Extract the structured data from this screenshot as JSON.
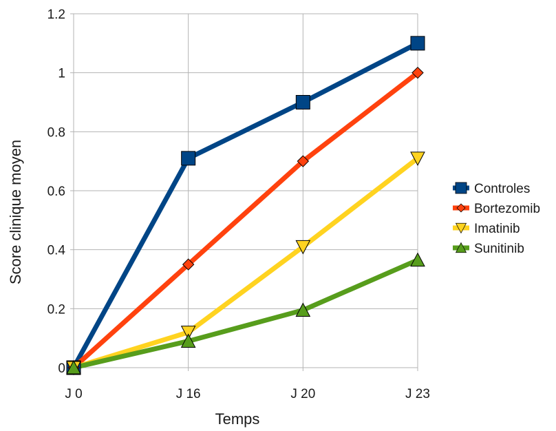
{
  "chart_data": {
    "type": "line",
    "title": "",
    "xlabel": "Temps",
    "ylabel": "Score clinique moyen",
    "categories": [
      "J 0",
      "J 16",
      "J 20",
      "J 23"
    ],
    "ylim": [
      0,
      1.2
    ],
    "yticks": [
      0,
      0.2,
      0.4,
      0.6,
      0.8,
      1,
      1.2
    ],
    "ytick_labels": [
      "0",
      "0.2",
      "0.4",
      "0.6",
      "0.8",
      "1",
      "1.2"
    ],
    "grid": true,
    "legend_position": "right",
    "series": [
      {
        "name": "Controles",
        "values": [
          0,
          0.71,
          0.9,
          1.1
        ],
        "color": "#004586",
        "marker": "square"
      },
      {
        "name": "Bortezomib",
        "values": [
          0,
          0.35,
          0.7,
          1.0
        ],
        "color": "#ff420e",
        "marker": "diamond"
      },
      {
        "name": "Imatinib",
        "values": [
          0,
          0.12,
          0.41,
          0.71
        ],
        "color": "#ffd320",
        "marker": "triangle-down"
      },
      {
        "name": "Sunitinib",
        "values": [
          0,
          0.09,
          0.195,
          0.365
        ],
        "color": "#579d1c",
        "marker": "triangle-up"
      }
    ]
  }
}
